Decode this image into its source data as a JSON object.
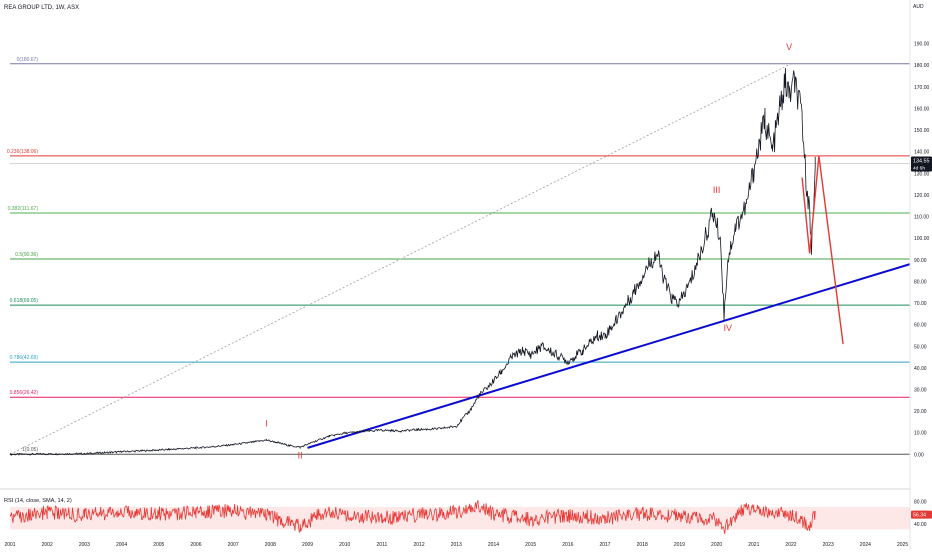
{
  "header": {
    "symbol_line": "REA GROUP LTD, 1W, ASX",
    "currency": "AUD"
  },
  "price_badge": {
    "value": "134.55",
    "countdown": "4d 6h"
  },
  "rsi": {
    "label": "RSI (14, close, SMA, 14, 2)",
    "value": "56.34",
    "levels": [
      70,
      30
    ]
  },
  "colors": {
    "price_line": "#131722",
    "trend_line": "#0b0bd1",
    "projection": "#e53935",
    "wave_label": "#e53935",
    "rsi_line": "#e53935",
    "rsi_band": "#fde7e7"
  },
  "chart_data": {
    "type": "line",
    "title": "REA GROUP LTD, 1W, ASX",
    "xlabel": "",
    "ylabel": "AUD",
    "xlim": [
      2001.0,
      2025.2
    ],
    "ylim": [
      -4,
      200
    ],
    "x_ticks": [
      "2001",
      "2002",
      "2003",
      "2004",
      "2005",
      "2006",
      "2007",
      "2008",
      "2009",
      "2010",
      "2011",
      "2012",
      "2013",
      "2014",
      "2015",
      "2016",
      "2017",
      "2018",
      "2019",
      "2020",
      "2021",
      "2022",
      "2023",
      "2024",
      "2025"
    ],
    "y_ticks": [
      "0.00",
      "10.00",
      "20.00",
      "30.00",
      "40.00",
      "50.00",
      "60.00",
      "70.00",
      "80.00",
      "90.00",
      "100.00",
      "110.00",
      "120.00",
      "130.00",
      "140.00",
      "150.00",
      "160.00",
      "170.00",
      "180.00",
      "190.00"
    ],
    "series": [
      {
        "x": [
          2001.0,
          2003.0,
          2004.0,
          2005.0,
          2006.0,
          2006.5,
          2007.0,
          2007.5,
          2007.9,
          2008.2,
          2008.5,
          2008.8,
          2009.2,
          2009.6,
          2010.0,
          2010.5,
          2011.0,
          2011.5,
          2012.0,
          2012.5,
          2013.0,
          2013.4,
          2013.6,
          2013.9,
          2014.2,
          2014.5,
          2014.8,
          2015.0,
          2015.3,
          2015.6,
          2016.0,
          2016.4,
          2016.8,
          2017.0,
          2017.3,
          2017.6,
          2017.9,
          2018.1,
          2018.4,
          2018.6,
          2018.8,
          2019.0,
          2019.3,
          2019.6,
          2019.9,
          2020.1,
          2020.2,
          2020.3,
          2020.5,
          2020.8,
          2021.0,
          2021.3,
          2021.5,
          2021.7,
          2021.85,
          2021.95,
          2022.1,
          2022.3,
          2022.4,
          2022.5,
          2022.55,
          2022.65
        ],
        "y": [
          0.0,
          0.3,
          1.2,
          2.0,
          3.0,
          3.6,
          4.5,
          5.6,
          6.6,
          5.4,
          4.1,
          3.3,
          6.0,
          8.5,
          9.8,
          10.6,
          11.2,
          10.8,
          11.5,
          11.8,
          13.0,
          21.0,
          27.0,
          32.0,
          38.0,
          45.0,
          48.0,
          46.0,
          50.0,
          47.0,
          43.0,
          48.0,
          55.0,
          55.0,
          62.0,
          70.0,
          79.0,
          86.0,
          93.0,
          80.0,
          72.0,
          70.0,
          80.0,
          95.0,
          112.0,
          100.0,
          64.0,
          90.0,
          105.0,
          115.0,
          132.0,
          155.0,
          140.0,
          160.0,
          172.0,
          166.0,
          172.0,
          155.0,
          128.0,
          112.0,
          95.0,
          134.55
        ]
      }
    ],
    "trend_line": {
      "x": [
        2009.0,
        2025.2
      ],
      "y": [
        3.0,
        88.0
      ]
    },
    "fib_diagonal": {
      "x": [
        2001.0,
        2022.0
      ],
      "y": [
        0.0,
        180.67
      ]
    },
    "fib_levels": [
      {
        "label": "0(180.67)",
        "value": 180.67,
        "color": "#7878a8"
      },
      {
        "label": "0.236(138.06)",
        "value": 138.06,
        "color": "#e53935"
      },
      {
        "label": "0.382(111.67)",
        "value": 111.67,
        "color": "#4caf50"
      },
      {
        "label": "0.5(90.36)",
        "value": 90.36,
        "color": "#43a047"
      },
      {
        "label": "0.618(69.05)",
        "value": 69.05,
        "color": "#1b8c5a"
      },
      {
        "label": "0.786(42.69)",
        "value": 42.69,
        "color": "#29a3c9"
      },
      {
        "label": "0.856(26.42)",
        "value": 26.42,
        "color": "#e91e63"
      },
      {
        "label": "1(0.05)",
        "value": 0.05,
        "color": "#555555"
      }
    ],
    "projection": {
      "x": [
        2022.3,
        2022.5,
        2022.75,
        2023.4
      ],
      "y": [
        128.0,
        93.0,
        138.0,
        51.0
      ]
    },
    "wave_labels": [
      {
        "label": "I",
        "x": 2007.9,
        "y": 13.0
      },
      {
        "label": "II",
        "x": 2008.8,
        "y": -2.0
      },
      {
        "label": "III",
        "x": 2020.0,
        "y": 121.0
      },
      {
        "label": "IV",
        "x": 2020.3,
        "y": 57.0
      },
      {
        "label": "V",
        "x": 2021.95,
        "y": 187.0
      }
    ],
    "rsi_series": {
      "x": [
        2001.0,
        2002.0,
        2003.0,
        2004.0,
        2005.0,
        2006.0,
        2007.0,
        2008.0,
        2008.8,
        2009.5,
        2010.0,
        2011.0,
        2012.0,
        2013.0,
        2013.5,
        2014.0,
        2015.0,
        2016.0,
        2017.0,
        2018.0,
        2019.0,
        2020.0,
        2020.2,
        2020.6,
        2021.0,
        2021.5,
        2022.0,
        2022.4,
        2022.5,
        2022.65
      ],
      "y": [
        50,
        60,
        55,
        62,
        58,
        60,
        64,
        52,
        36,
        62,
        58,
        50,
        56,
        60,
        74,
        58,
        48,
        55,
        50,
        58,
        54,
        48,
        30,
        62,
        68,
        60,
        56,
        40,
        38,
        56.34
      ]
    }
  }
}
